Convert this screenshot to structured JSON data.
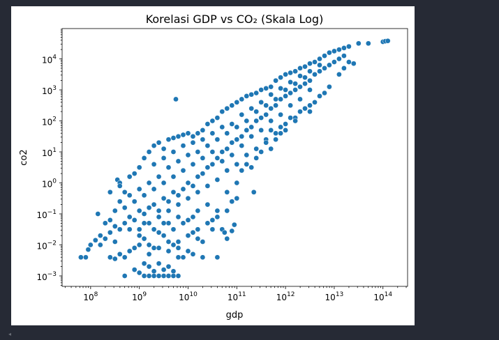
{
  "colors": {
    "background": "#262a35",
    "figure": "#ffffff",
    "marker": "#1f77b4",
    "marker_edge": "#ffffff",
    "axis": "#000000"
  },
  "icons": {
    "scroll_left": "triangle-left-icon"
  },
  "chart_data": {
    "type": "scatter",
    "title": "Korelasi GDP vs CO₂ (Skala Log)",
    "xlabel": "gdp",
    "ylabel": "co2",
    "xscale": "log",
    "yscale": "log",
    "xlim": [
      26000000.0,
      320000000000000.0
    ],
    "ylim": [
      0.00046,
      95000.0
    ],
    "grid": false,
    "xticks": [
      {
        "base": "10",
        "exp": "8"
      },
      {
        "base": "10",
        "exp": "9"
      },
      {
        "base": "10",
        "exp": "10"
      },
      {
        "base": "10",
        "exp": "11"
      },
      {
        "base": "10",
        "exp": "12"
      },
      {
        "base": "10",
        "exp": "13"
      },
      {
        "base": "10",
        "exp": "14"
      }
    ],
    "yticks": [
      {
        "base": "10",
        "exp": "−3"
      },
      {
        "base": "10",
        "exp": "−2"
      },
      {
        "base": "10",
        "exp": "−1"
      },
      {
        "base": "10",
        "exp": "0"
      },
      {
        "base": "10",
        "exp": "1"
      },
      {
        "base": "10",
        "exp": "2"
      },
      {
        "base": "10",
        "exp": "3"
      },
      {
        "base": "10",
        "exp": "4"
      }
    ],
    "points_log10": [
      [
        7.8,
        -2.4
      ],
      [
        7.9,
        -2.4
      ],
      [
        7.95,
        -2.15
      ],
      [
        8.0,
        -2.0
      ],
      [
        8.1,
        -1.85
      ],
      [
        8.2,
        -1.7
      ],
      [
        8.15,
        -1.0
      ],
      [
        8.3,
        -1.3
      ],
      [
        8.4,
        -1.2
      ],
      [
        8.5,
        -0.9
      ],
      [
        8.55,
        0.1
      ],
      [
        8.6,
        0.0
      ],
      [
        8.7,
        -0.3
      ],
      [
        8.8,
        0.2
      ],
      [
        8.9,
        0.3
      ],
      [
        9.0,
        0.5
      ],
      [
        9.1,
        0.8
      ],
      [
        9.2,
        1.0
      ],
      [
        9.3,
        1.2
      ],
      [
        9.4,
        1.3
      ],
      [
        9.5,
        1.1
      ],
      [
        9.6,
        1.4
      ],
      [
        9.7,
        1.45
      ],
      [
        9.8,
        1.5
      ],
      [
        9.9,
        1.55
      ],
      [
        10.0,
        1.6
      ],
      [
        10.1,
        1.5
      ],
      [
        10.2,
        1.6
      ],
      [
        10.3,
        1.7
      ],
      [
        10.4,
        1.9
      ],
      [
        10.5,
        2.0
      ],
      [
        10.6,
        2.1
      ],
      [
        10.7,
        2.3
      ],
      [
        10.8,
        2.4
      ],
      [
        10.9,
        2.5
      ],
      [
        11.0,
        2.6
      ],
      [
        11.1,
        2.7
      ],
      [
        11.2,
        2.8
      ],
      [
        11.3,
        2.85
      ],
      [
        11.4,
        2.9
      ],
      [
        11.5,
        3.0
      ],
      [
        11.6,
        3.05
      ],
      [
        11.7,
        3.1
      ],
      [
        11.8,
        3.3
      ],
      [
        11.9,
        3.4
      ],
      [
        12.0,
        3.5
      ],
      [
        12.1,
        3.55
      ],
      [
        12.2,
        3.6
      ],
      [
        12.3,
        3.7
      ],
      [
        12.4,
        3.75
      ],
      [
        12.5,
        3.85
      ],
      [
        12.6,
        3.9
      ],
      [
        12.7,
        4.0
      ],
      [
        12.8,
        4.1
      ],
      [
        12.9,
        4.2
      ],
      [
        13.0,
        4.25
      ],
      [
        13.1,
        4.3
      ],
      [
        13.2,
        4.35
      ],
      [
        13.3,
        4.4
      ],
      [
        13.5,
        4.5
      ],
      [
        13.7,
        4.5
      ],
      [
        14.0,
        4.55
      ],
      [
        14.05,
        4.57
      ],
      [
        14.1,
        4.58
      ],
      [
        8.7,
        -3.0
      ],
      [
        9.1,
        -3.0
      ],
      [
        9.2,
        -3.0
      ],
      [
        9.3,
        -3.0
      ],
      [
        9.4,
        -3.0
      ],
      [
        9.5,
        -3.0
      ],
      [
        9.6,
        -3.0
      ],
      [
        9.7,
        -3.0
      ],
      [
        9.8,
        -3.0
      ],
      [
        8.9,
        -2.8
      ],
      [
        9.0,
        -2.9
      ],
      [
        9.1,
        -2.6
      ],
      [
        9.2,
        -2.7
      ],
      [
        9.3,
        -2.85
      ],
      [
        9.4,
        -2.6
      ],
      [
        9.5,
        -2.8
      ],
      [
        9.6,
        -2.7
      ],
      [
        9.7,
        -2.85
      ],
      [
        9.8,
        -2.4
      ],
      [
        8.4,
        -2.4
      ],
      [
        8.5,
        -2.45
      ],
      [
        8.6,
        -2.3
      ],
      [
        8.7,
        -2.4
      ],
      [
        8.8,
        -2.2
      ],
      [
        8.9,
        -2.1
      ],
      [
        9.0,
        -2.0
      ],
      [
        9.1,
        -1.8
      ],
      [
        9.2,
        -2.0
      ],
      [
        9.3,
        -2.1
      ],
      [
        9.4,
        -1.6
      ],
      [
        9.5,
        -1.7
      ],
      [
        9.6,
        -1.9
      ],
      [
        9.7,
        -2.0
      ],
      [
        9.8,
        -2.1
      ],
      [
        9.9,
        -2.4
      ],
      [
        10.0,
        -2.2
      ],
      [
        10.1,
        -2.3
      ],
      [
        10.2,
        -1.8
      ],
      [
        10.3,
        -2.4
      ],
      [
        10.6,
        -2.4
      ],
      [
        10.7,
        -1.5
      ],
      [
        10.8,
        -1.8
      ],
      [
        10.75,
        -1.6
      ],
      [
        8.3,
        -1.8
      ],
      [
        8.4,
        -1.6
      ],
      [
        8.5,
        -1.4
      ],
      [
        8.6,
        -1.5
      ],
      [
        8.7,
        -1.3
      ],
      [
        8.8,
        -1.1
      ],
      [
        8.9,
        -1.2
      ],
      [
        9.0,
        -0.9
      ],
      [
        9.1,
        -1.0
      ],
      [
        9.2,
        -0.8
      ],
      [
        9.3,
        -0.7
      ],
      [
        9.4,
        -0.9
      ],
      [
        9.5,
        -0.5
      ],
      [
        9.6,
        -0.6
      ],
      [
        9.7,
        -0.3
      ],
      [
        9.8,
        -0.4
      ],
      [
        9.9,
        -0.2
      ],
      [
        10.0,
        0.0
      ],
      [
        10.1,
        -0.1
      ],
      [
        10.2,
        0.2
      ],
      [
        10.3,
        0.3
      ],
      [
        10.4,
        0.5
      ],
      [
        10.5,
        0.6
      ],
      [
        10.6,
        0.8
      ],
      [
        10.7,
        1.0
      ],
      [
        10.8,
        1.1
      ],
      [
        10.9,
        1.3
      ],
      [
        11.0,
        1.4
      ],
      [
        11.1,
        1.5
      ],
      [
        11.2,
        1.7
      ],
      [
        11.3,
        1.8
      ],
      [
        11.4,
        2.0
      ],
      [
        11.5,
        2.1
      ],
      [
        11.6,
        2.2
      ],
      [
        11.7,
        2.4
      ],
      [
        11.8,
        2.5
      ],
      [
        11.9,
        2.7
      ],
      [
        12.0,
        2.8
      ],
      [
        12.1,
        2.9
      ],
      [
        12.2,
        3.0
      ],
      [
        12.3,
        3.1
      ],
      [
        12.4,
        3.2
      ],
      [
        12.5,
        3.3
      ],
      [
        12.6,
        3.5
      ],
      [
        12.7,
        3.6
      ],
      [
        12.8,
        3.7
      ],
      [
        12.9,
        3.8
      ],
      [
        13.0,
        3.9
      ],
      [
        13.1,
        4.0
      ],
      [
        13.2,
        4.1
      ],
      [
        8.6,
        -0.6
      ],
      [
        8.8,
        -0.4
      ],
      [
        9.0,
        -0.2
      ],
      [
        9.2,
        0.0
      ],
      [
        9.4,
        0.2
      ],
      [
        9.6,
        0.5
      ],
      [
        9.8,
        0.7
      ],
      [
        10.0,
        0.9
      ],
      [
        10.2,
        1.0
      ],
      [
        10.4,
        1.2
      ],
      [
        10.6,
        1.4
      ],
      [
        10.8,
        1.6
      ],
      [
        11.0,
        1.8
      ],
      [
        11.2,
        2.0
      ],
      [
        11.4,
        2.3
      ],
      [
        11.6,
        2.5
      ],
      [
        11.8,
        2.7
      ],
      [
        12.0,
        3.0
      ],
      [
        12.2,
        3.2
      ],
      [
        12.4,
        3.4
      ],
      [
        9.0,
        -1.5
      ],
      [
        9.2,
        -1.3
      ],
      [
        9.4,
        -1.1
      ],
      [
        9.6,
        -0.9
      ],
      [
        9.8,
        -0.7
      ],
      [
        10.0,
        -0.5
      ],
      [
        10.2,
        -0.3
      ],
      [
        10.4,
        -0.1
      ],
      [
        10.6,
        0.1
      ],
      [
        10.8,
        0.4
      ],
      [
        11.0,
        0.6
      ],
      [
        11.2,
        0.9
      ],
      [
        11.4,
        1.1
      ],
      [
        11.6,
        1.4
      ],
      [
        11.8,
        1.6
      ],
      [
        12.0,
        1.9
      ],
      [
        12.2,
        2.1
      ],
      [
        12.4,
        2.4
      ],
      [
        12.6,
        2.6
      ],
      [
        12.8,
        2.9
      ],
      [
        9.6,
        -1.3
      ],
      [
        9.8,
        -1.1
      ],
      [
        10.0,
        -1.2
      ],
      [
        10.2,
        -0.9
      ],
      [
        10.4,
        -0.7
      ],
      [
        10.5,
        -1.2
      ],
      [
        10.6,
        -0.9
      ],
      [
        10.8,
        -0.3
      ],
      [
        10.9,
        -0.6
      ],
      [
        11.0,
        0.0
      ],
      [
        11.1,
        0.4
      ],
      [
        11.2,
        0.6
      ],
      [
        11.3,
        0.5
      ],
      [
        11.4,
        0.8
      ],
      [
        11.5,
        1.0
      ],
      [
        11.6,
        1.3
      ],
      [
        11.7,
        1.1
      ],
      [
        11.8,
        1.4
      ],
      [
        11.9,
        1.6
      ],
      [
        12.0,
        1.7
      ],
      [
        12.2,
        2.0
      ],
      [
        12.3,
        2.3
      ],
      [
        12.5,
        2.5
      ],
      [
        12.7,
        2.8
      ],
      [
        12.9,
        3.1
      ],
      [
        13.1,
        3.5
      ],
      [
        13.2,
        3.7
      ],
      [
        13.3,
        3.9
      ],
      [
        13.4,
        3.85
      ],
      [
        12.5,
        2.3
      ],
      [
        9.75,
        2.7
      ],
      [
        11.35,
        -0.3
      ],
      [
        11.7,
        1.7
      ],
      [
        11.9,
        1.8
      ],
      [
        12.1,
        2.1
      ],
      [
        10.9,
        -1.55
      ],
      [
        10.95,
        -1.35
      ],
      [
        10.5,
        -1.5
      ],
      [
        10.3,
        -1.9
      ],
      [
        10.1,
        -1.6
      ],
      [
        10.9,
        1.9
      ],
      [
        11.1,
        2.2
      ],
      [
        11.3,
        2.4
      ],
      [
        11.5,
        2.6
      ],
      [
        11.7,
        2.85
      ],
      [
        11.9,
        3.05
      ],
      [
        12.1,
        3.25
      ],
      [
        12.3,
        3.45
      ],
      [
        12.5,
        3.6
      ],
      [
        12.7,
        3.8
      ],
      [
        9.3,
        0.6
      ],
      [
        9.5,
        0.8
      ],
      [
        9.7,
        1.0
      ],
      [
        9.9,
        1.2
      ],
      [
        10.1,
        1.3
      ],
      [
        10.3,
        1.4
      ],
      [
        10.5,
        1.6
      ],
      [
        10.7,
        1.8
      ],
      [
        8.4,
        -0.3
      ],
      [
        8.6,
        -0.1
      ],
      [
        8.7,
        -0.8
      ],
      [
        8.9,
        -0.6
      ],
      [
        9.1,
        -0.4
      ],
      [
        9.3,
        -0.2
      ],
      [
        9.5,
        0.0
      ],
      [
        9.7,
        0.2
      ],
      [
        9.9,
        0.4
      ],
      [
        10.1,
        0.6
      ],
      [
        10.3,
        0.8
      ],
      [
        10.5,
        1.0
      ],
      [
        10.7,
        0.7
      ],
      [
        10.9,
        0.9
      ],
      [
        11.1,
        1.2
      ],
      [
        11.3,
        1.5
      ],
      [
        11.5,
        1.7
      ],
      [
        11.7,
        2.0
      ],
      [
        11.9,
        2.2
      ],
      [
        12.1,
        2.5
      ],
      [
        12.3,
        2.7
      ],
      [
        12.5,
        3.0
      ],
      [
        9.2,
        -2.3
      ],
      [
        9.4,
        -2.1
      ],
      [
        9.6,
        -2.2
      ],
      [
        9.8,
        -1.9
      ],
      [
        10.0,
        -1.7
      ],
      [
        10.2,
        -1.5
      ],
      [
        10.4,
        -1.3
      ],
      [
        10.6,
        -1.1
      ],
      [
        10.8,
        -0.9
      ],
      [
        11.0,
        -0.5
      ],
      [
        8.2,
        -2.0
      ],
      [
        8.5,
        -1.9
      ],
      [
        8.8,
        -1.5
      ],
      [
        9.0,
        -1.7
      ],
      [
        9.1,
        -1.3
      ],
      [
        9.3,
        -1.5
      ],
      [
        9.5,
        -1.3
      ],
      [
        9.7,
        -1.5
      ],
      [
        9.9,
        -1.3
      ],
      [
        10.1,
        -1.1
      ]
    ]
  }
}
